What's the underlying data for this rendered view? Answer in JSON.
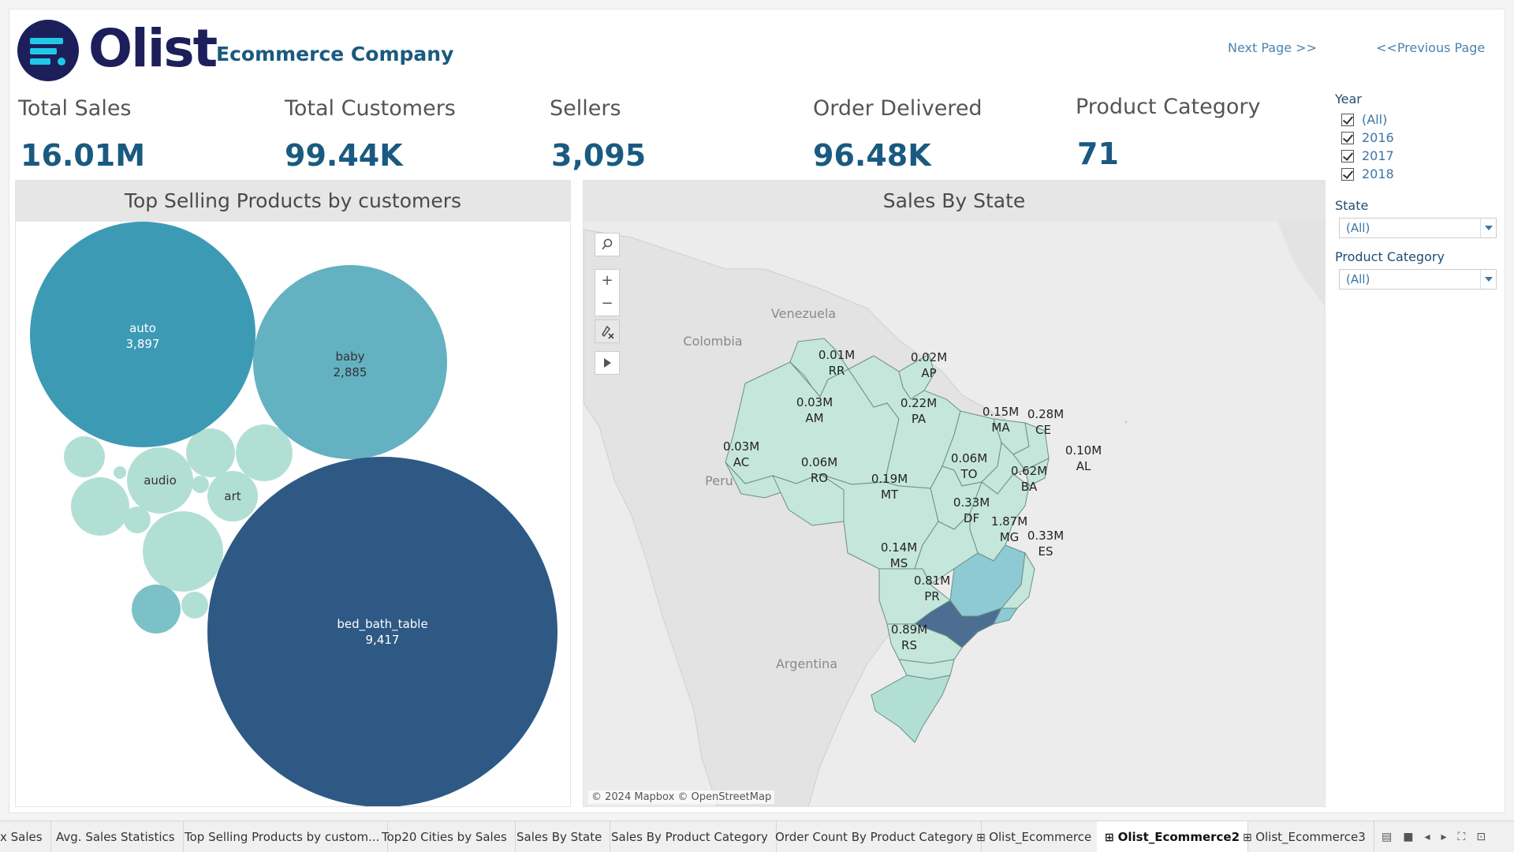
{
  "brand": {
    "name": "Olist",
    "company": "Ecommerce Company"
  },
  "nav": {
    "next": "Next Page >>",
    "prev": "<<Previous Page"
  },
  "kpis": [
    {
      "label": "Total Sales",
      "value": "16.01M"
    },
    {
      "label": "Total Customers",
      "value": "99.44K"
    },
    {
      "label": "Sellers",
      "value": "3,095"
    },
    {
      "label": "Order Delivered",
      "value": "96.48K"
    },
    {
      "label": "Product Category",
      "value": "71"
    }
  ],
  "filters": {
    "year_title": "Year",
    "years": [
      "(All)",
      "2016",
      "2017",
      "2018"
    ],
    "state_title": "State",
    "state_value": "(All)",
    "category_title": "Product Category",
    "category_value": "(All)"
  },
  "panels": {
    "bubble_title": "Top Selling Products by customers",
    "map_title": "Sales By State",
    "map_credit": "© 2024 Mapbox © OpenStreetMap"
  },
  "colors": {
    "accent": "#1a5a80",
    "bubble_dark": "#2e5984",
    "bubble_mid": "#3d9ab5",
    "bubble_light": "#63b1c1",
    "bubble_pale": "#b2dfd4",
    "map_pale": "#c5e6db",
    "map_mid": "#8ecad4",
    "map_dark": "#4d6e93"
  },
  "chart_data": [
    {
      "type": "bubble",
      "title": "Top Selling Products by customers",
      "labeled": [
        {
          "category": "bed_bath_table",
          "value": 9417,
          "value_label": "9,417"
        },
        {
          "category": "auto",
          "value": 3897,
          "value_label": "3,897"
        },
        {
          "category": "baby",
          "value": 2885,
          "value_label": "2,885"
        },
        {
          "category": "audio",
          "value": null,
          "value_label": ""
        },
        {
          "category": "art",
          "value": null,
          "value_label": ""
        }
      ]
    },
    {
      "type": "map",
      "title": "Sales By State",
      "states": [
        {
          "state": "RR",
          "value_label": "0.01M",
          "value": 0.01
        },
        {
          "state": "AP",
          "value_label": "0.02M",
          "value": 0.02
        },
        {
          "state": "AM",
          "value_label": "0.03M",
          "value": 0.03
        },
        {
          "state": "PA",
          "value_label": "0.22M",
          "value": 0.22
        },
        {
          "state": "MA",
          "value_label": "0.15M",
          "value": 0.15
        },
        {
          "state": "CE",
          "value_label": "0.28M",
          "value": 0.28
        },
        {
          "state": "AC",
          "value_label": "0.03M",
          "value": 0.03
        },
        {
          "state": "AL",
          "value_label": "0.10M",
          "value": 0.1
        },
        {
          "state": "RO",
          "value_label": "0.06M",
          "value": 0.06
        },
        {
          "state": "TO",
          "value_label": "0.06M",
          "value": 0.06
        },
        {
          "state": "MT",
          "value_label": "0.19M",
          "value": 0.19
        },
        {
          "state": "BA",
          "value_label": "0.62M",
          "value": 0.62
        },
        {
          "state": "DF",
          "value_label": "0.33M",
          "value": 0.33
        },
        {
          "state": "MG",
          "value_label": "1.87M",
          "value": 1.87
        },
        {
          "state": "ES",
          "value_label": "0.33M",
          "value": 0.33
        },
        {
          "state": "MS",
          "value_label": "0.14M",
          "value": 0.14
        },
        {
          "state": "PR",
          "value_label": "0.81M",
          "value": 0.81
        },
        {
          "state": "RS",
          "value_label": "0.89M",
          "value": 0.89
        }
      ],
      "countries": [
        "Venezuela",
        "Colombia",
        "Peru",
        "Argentina"
      ]
    }
  ],
  "tabs": [
    {
      "label": "x Sales",
      "icon": false,
      "active": false
    },
    {
      "label": "Avg. Sales Statistics",
      "icon": false,
      "active": false
    },
    {
      "label": "Top Selling Products by custom...",
      "icon": false,
      "active": false
    },
    {
      "label": "Top20 Cities by Sales",
      "icon": false,
      "active": false
    },
    {
      "label": "Sales By State",
      "icon": false,
      "active": false
    },
    {
      "label": "Sales By Product Category",
      "icon": false,
      "active": false
    },
    {
      "label": "Order Count By Product Category",
      "icon": false,
      "active": false
    },
    {
      "label": "Olist_Ecommerce",
      "icon": true,
      "active": false
    },
    {
      "label": "Olist_Ecommerce2",
      "icon": true,
      "active": true
    },
    {
      "label": "Olist_Ecommerce3",
      "icon": true,
      "active": false
    }
  ]
}
